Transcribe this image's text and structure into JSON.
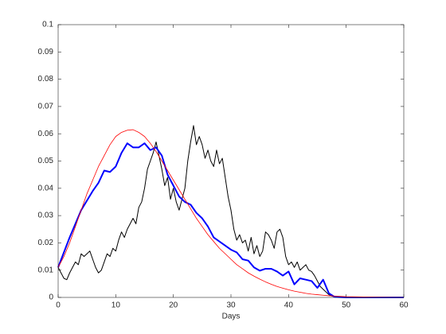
{
  "chart_data": {
    "type": "line",
    "xlabel": "Days",
    "xlim": [
      0,
      60
    ],
    "xticks": [
      0,
      10,
      20,
      30,
      40,
      50,
      60
    ],
    "ylim": [
      0,
      0.1
    ],
    "yticks": [
      0,
      0.01,
      0.02,
      0.03,
      0.04,
      0.05,
      0.06,
      0.07,
      0.08,
      0.09,
      0.1
    ],
    "grid": false,
    "series": [
      {
        "color": "#000000",
        "width": 1,
        "x": [
          0,
          0.5,
          1,
          1.5,
          2,
          2.5,
          3,
          3.5,
          4,
          4.5,
          5,
          5.5,
          6,
          6.5,
          7,
          7.5,
          8,
          8.5,
          9,
          9.5,
          10,
          10.5,
          11,
          11.5,
          12,
          12.5,
          13,
          13.5,
          14,
          14.5,
          15,
          15.5,
          16,
          16.5,
          17,
          17.5,
          18,
          18.5,
          19,
          19.5,
          20,
          20.5,
          21,
          21.5,
          22,
          22.5,
          23,
          23.5,
          24,
          24.5,
          25,
          25.5,
          26,
          26.5,
          27,
          27.5,
          28,
          28.5,
          29,
          29.5,
          30,
          30.5,
          31,
          31.5,
          32,
          32.5,
          33,
          33.5,
          34,
          34.5,
          35,
          35.5,
          36,
          36.5,
          37,
          37.5,
          38,
          38.5,
          39,
          39.5,
          40,
          40.5,
          41,
          41.5,
          42,
          42.5,
          43,
          43.5,
          44,
          44.5,
          45,
          45.5,
          46,
          46.5,
          47,
          47.5,
          48,
          50,
          60
        ],
        "values": [
          0.011,
          0.009,
          0.007,
          0.0065,
          0.009,
          0.011,
          0.013,
          0.012,
          0.016,
          0.015,
          0.016,
          0.017,
          0.014,
          0.011,
          0.009,
          0.01,
          0.013,
          0.016,
          0.015,
          0.018,
          0.017,
          0.021,
          0.024,
          0.022,
          0.025,
          0.027,
          0.029,
          0.027,
          0.033,
          0.035,
          0.04,
          0.047,
          0.05,
          0.053,
          0.057,
          0.052,
          0.047,
          0.041,
          0.044,
          0.036,
          0.04,
          0.035,
          0.032,
          0.036,
          0.04,
          0.05,
          0.057,
          0.063,
          0.056,
          0.059,
          0.056,
          0.051,
          0.054,
          0.05,
          0.048,
          0.054,
          0.049,
          0.051,
          0.044,
          0.037,
          0.032,
          0.025,
          0.021,
          0.023,
          0.02,
          0.021,
          0.017,
          0.022,
          0.016,
          0.019,
          0.015,
          0.017,
          0.024,
          0.023,
          0.021,
          0.018,
          0.024,
          0.025,
          0.022,
          0.015,
          0.012,
          0.013,
          0.011,
          0.013,
          0.01,
          0.011,
          0.012,
          0.01,
          0.0095,
          0.008,
          0.006,
          0.004,
          0.003,
          0.002,
          0.001,
          0.0005,
          0.0002,
          0,
          0
        ]
      },
      {
        "color": "#0000ff",
        "width": 2,
        "x": [
          0,
          2,
          4,
          6,
          7,
          8,
          9,
          10,
          11,
          12,
          13,
          14,
          15,
          16,
          17,
          18,
          19,
          20,
          21,
          22,
          23,
          24,
          25,
          26,
          27,
          28,
          29,
          30,
          31,
          32,
          33,
          34,
          35,
          36,
          37,
          38,
          39,
          40,
          41,
          42,
          43,
          44,
          45,
          46,
          47,
          48,
          50,
          60
        ],
        "values": [
          0.011,
          0.022,
          0.032,
          0.039,
          0.042,
          0.0465,
          0.046,
          0.048,
          0.053,
          0.0565,
          0.055,
          0.055,
          0.0565,
          0.054,
          0.055,
          0.052,
          0.045,
          0.041,
          0.037,
          0.035,
          0.034,
          0.031,
          0.029,
          0.026,
          0.022,
          0.0205,
          0.019,
          0.0175,
          0.0165,
          0.014,
          0.0135,
          0.011,
          0.0098,
          0.0105,
          0.0105,
          0.0095,
          0.008,
          0.0095,
          0.0048,
          0.007,
          0.0065,
          0.006,
          0.0035,
          0.0065,
          0.0015,
          0.0002,
          0,
          0
        ]
      },
      {
        "color": "#ff0000",
        "width": 0.8,
        "x": [
          0,
          1,
          2,
          3,
          4,
          5,
          6,
          7,
          8,
          9,
          10,
          11,
          12,
          13,
          14,
          15,
          16,
          17,
          18,
          19,
          20,
          21,
          22,
          23,
          24,
          25,
          26,
          27,
          28,
          29,
          30,
          31,
          32,
          33,
          34,
          35,
          36,
          37,
          38,
          39,
          40,
          41,
          42,
          43,
          44,
          45,
          46,
          47,
          48,
          50,
          55,
          60
        ],
        "values": [
          0.011,
          0.015,
          0.02,
          0.026,
          0.032,
          0.038,
          0.043,
          0.048,
          0.052,
          0.056,
          0.059,
          0.0605,
          0.0613,
          0.0615,
          0.0605,
          0.059,
          0.0565,
          0.0535,
          0.05,
          0.0465,
          0.043,
          0.0395,
          0.036,
          0.0325,
          0.029,
          0.026,
          0.023,
          0.0205,
          0.018,
          0.016,
          0.014,
          0.012,
          0.0105,
          0.009,
          0.0078,
          0.0067,
          0.0057,
          0.0048,
          0.004,
          0.0034,
          0.0028,
          0.0023,
          0.0019,
          0.0015,
          0.0012,
          0.001,
          0.0008,
          0.0006,
          0.0005,
          0.0003,
          0.0001,
          0
        ]
      }
    ]
  }
}
